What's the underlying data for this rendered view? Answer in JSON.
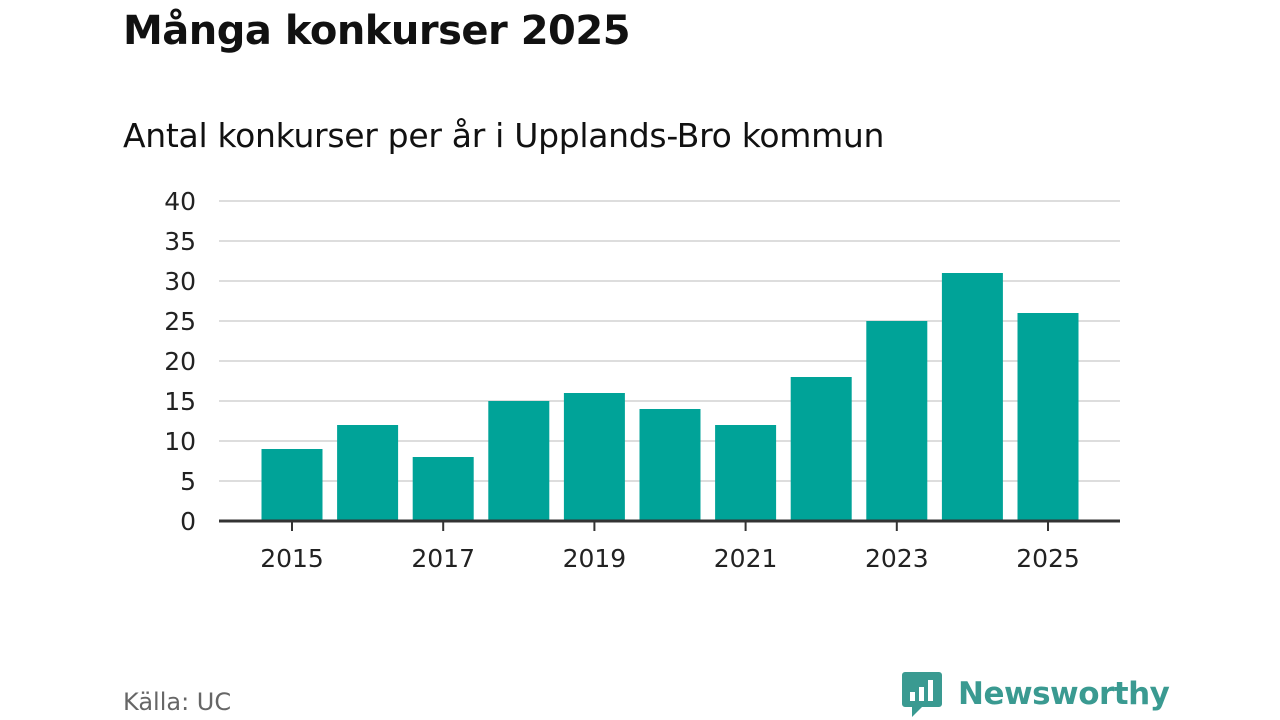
{
  "title": "Många konkurser 2025",
  "subtitle": "Antal konkurser per år i Upplands-Bro kommun",
  "source": "Källa: UC",
  "brand": {
    "name": "Newsworthy",
    "icon": "newsworthy-logo-icon",
    "color": "#3a9a91"
  },
  "colors": {
    "bar": "#00a398",
    "grid": "#dddddd",
    "axis": "#333333"
  },
  "chart_data": {
    "type": "bar",
    "title": "Många konkurser 2025",
    "subtitle": "Antal konkurser per år i Upplands-Bro kommun",
    "xlabel": "",
    "ylabel": "",
    "categories": [
      "2015",
      "2016",
      "2017",
      "2018",
      "2019",
      "2020",
      "2021",
      "2022",
      "2023",
      "2024",
      "2025"
    ],
    "values": [
      9,
      12,
      8,
      15,
      16,
      14,
      12,
      18,
      25,
      31,
      26
    ],
    "x_tick_labels": [
      "2015",
      "2017",
      "2019",
      "2021",
      "2023",
      "2025"
    ],
    "y_ticks": [
      0,
      5,
      10,
      15,
      20,
      25,
      30,
      35,
      40
    ],
    "ylim": [
      0,
      40
    ],
    "grid": true,
    "legend": "none"
  }
}
